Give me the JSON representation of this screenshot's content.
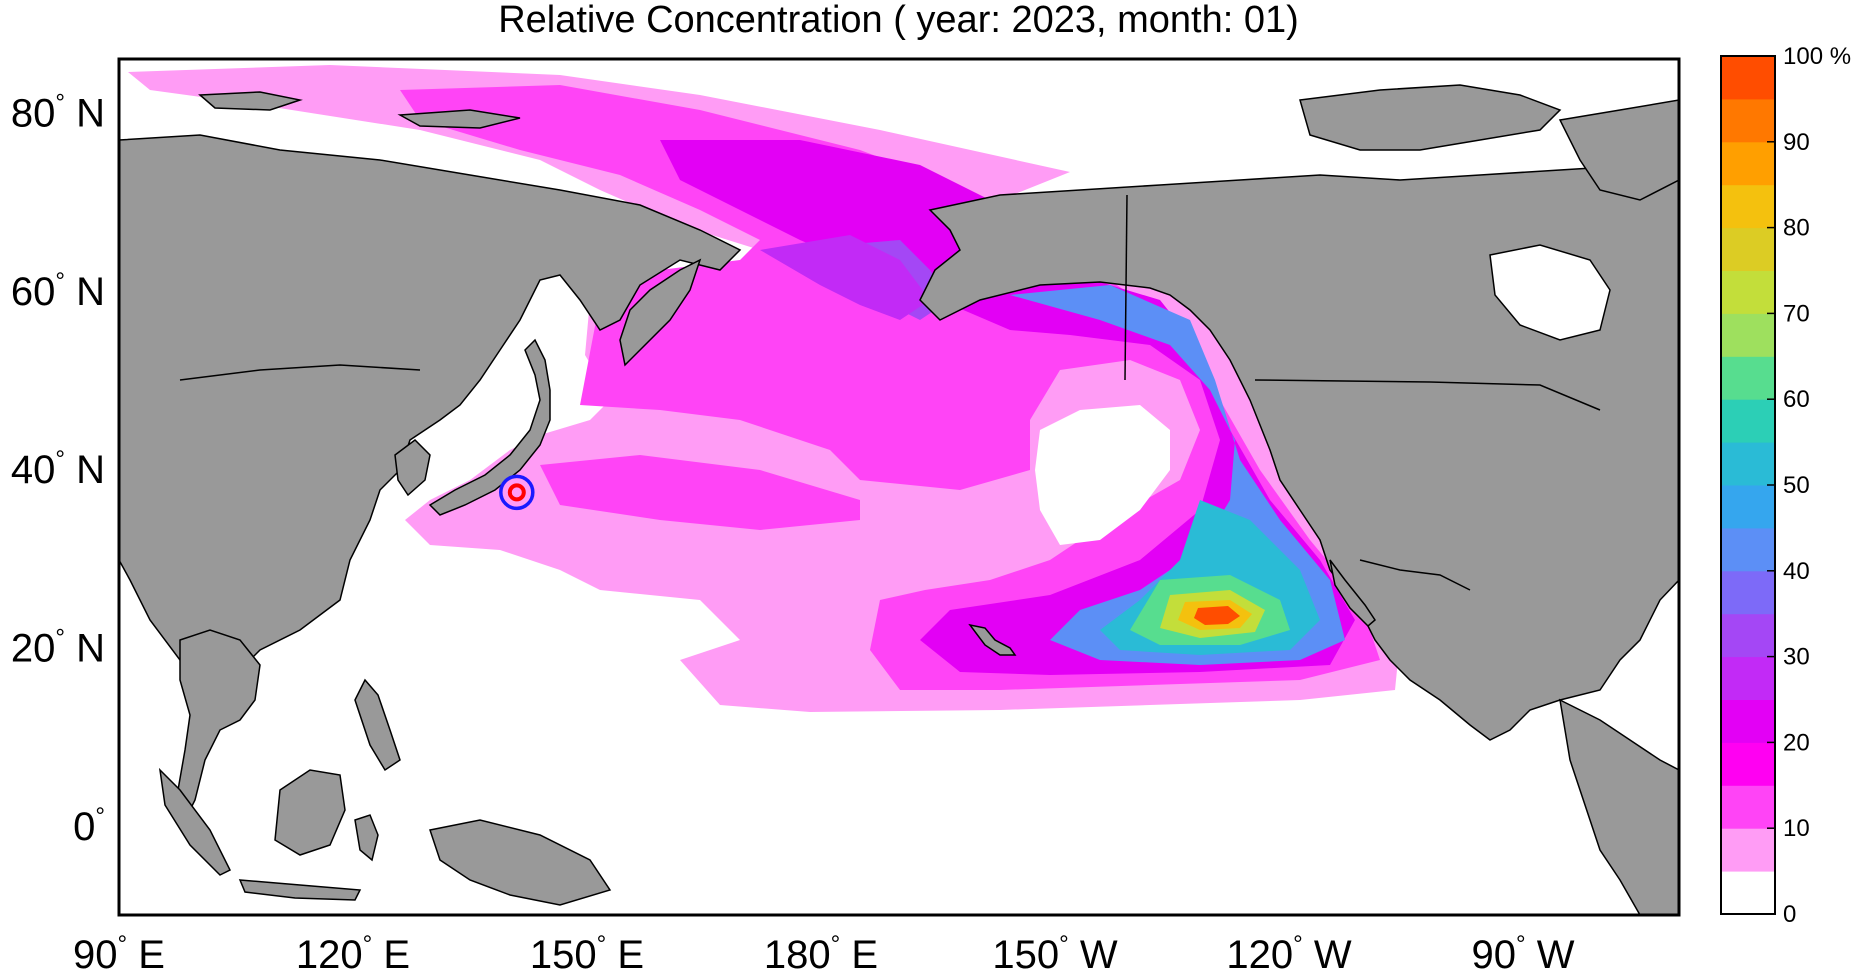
{
  "title": "Relative Concentration ( year: 2023, month: 01)",
  "map": {
    "lat_labels": [
      {
        "text": "80",
        "suffix": " N",
        "lat": 80
      },
      {
        "text": "60",
        "suffix": " N",
        "lat": 60
      },
      {
        "text": "40",
        "suffix": " N",
        "lat": 40
      },
      {
        "text": "20",
        "suffix": " N",
        "lat": 20
      },
      {
        "text": "0",
        "suffix": "",
        "lat": 0
      }
    ],
    "lon_labels": [
      {
        "text": "90",
        "suffix": " E",
        "lon": 90
      },
      {
        "text": "120",
        "suffix": " E",
        "lon": 120
      },
      {
        "text": "150",
        "suffix": " E",
        "lon": 150
      },
      {
        "text": "180",
        "suffix": " E",
        "lon": 180
      },
      {
        "text": "150",
        "suffix": " W",
        "lon": 210
      },
      {
        "text": "120",
        "suffix": " W",
        "lon": 240
      },
      {
        "text": "90",
        "suffix": " W",
        "lon": 270
      }
    ],
    "lon_range": [
      90,
      290
    ],
    "lat_range": [
      -10,
      86
    ],
    "source_marker": {
      "lon": 141.0,
      "lat": 37.4
    },
    "land_color": "#999999",
    "ocean_color": "#ffffff"
  },
  "colorbar": {
    "unit": "%",
    "labels": [
      "0",
      "10",
      "20",
      "30",
      "40",
      "50",
      "60",
      "70",
      "80",
      "90",
      "100 %"
    ],
    "colors": [
      "#ffffff",
      "#ff9cf5",
      "#ff44f6",
      "#ff00f2",
      "#e300f5",
      "#c22af6",
      "#a447f5",
      "#7d6af8",
      "#5c8ff6",
      "#35a6ee",
      "#2abbd6",
      "#2ccfb6",
      "#57dd8f",
      "#9ee05e",
      "#c3de3a",
      "#dccc24",
      "#f4c10e",
      "#ff9f00",
      "#ff7800",
      "#ff4d00"
    ]
  }
}
